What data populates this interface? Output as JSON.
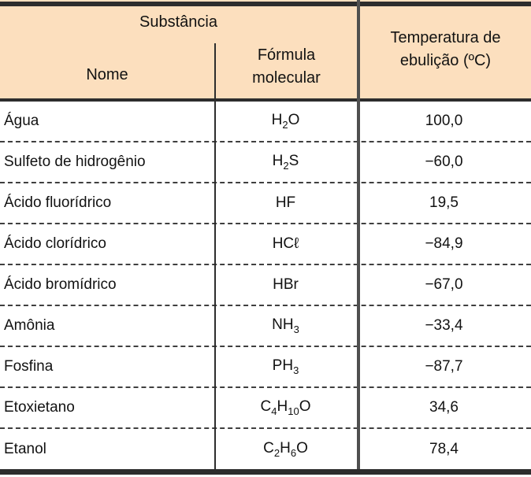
{
  "table": {
    "header": {
      "substance_group": "Substância",
      "col_name": "Nome",
      "col_formula_line1": "Fórmula",
      "col_formula_line2": "molecular",
      "col_temp_line1": "Temperatura de",
      "col_temp_line2": "ebulição (ºC)"
    },
    "rows": [
      {
        "name": "Água",
        "formula": "H~2~O",
        "temp": "100,0"
      },
      {
        "name": "Sulfeto de hidrogênio",
        "formula": "H~2~S",
        "temp": "−60,0"
      },
      {
        "name": "Ácido fluorídrico",
        "formula": "HF",
        "temp": "19,5"
      },
      {
        "name": "Ácido clorídrico",
        "formula": "HCℓ",
        "temp": "−84,9"
      },
      {
        "name": "Ácido bromídrico",
        "formula": "HBr",
        "temp": "−67,0"
      },
      {
        "name": "Amônia",
        "formula": "NH~3~",
        "temp": "−33,4"
      },
      {
        "name": "Fosfina",
        "formula": "PH~3~",
        "temp": "−87,7"
      },
      {
        "name": "Etoxietano",
        "formula": "C~4~H~10~O",
        "temp": "34,6"
      },
      {
        "name": "Etanol",
        "formula": "C~2~H~6~O",
        "temp": "78,4"
      }
    ]
  },
  "chart_data": {
    "type": "table",
    "title": "Substância / Temperatura de ebulição (ºC)",
    "columns": [
      "Nome",
      "Fórmula molecular",
      "Temperatura de ebulição (ºC)"
    ],
    "rows": [
      [
        "Água",
        "H2O",
        "100,0"
      ],
      [
        "Sulfeto de hidrogênio",
        "H2S",
        "−60,0"
      ],
      [
        "Ácido fluorídrico",
        "HF",
        "19,5"
      ],
      [
        "Ácido clorídrico",
        "HCℓ",
        "−84,9"
      ],
      [
        "Ácido bromídrico",
        "HBr",
        "−67,0"
      ],
      [
        "Amônia",
        "NH3",
        "−33,4"
      ],
      [
        "Fosfina",
        "PH3",
        "−87,7"
      ],
      [
        "Etoxietano",
        "C4H10O",
        "34,6"
      ],
      [
        "Etanol",
        "C2H6O",
        "78,4"
      ]
    ]
  },
  "colors": {
    "header_bg": "#fcdfbe",
    "border_dark": "#2d2d2d",
    "divider_gray": "#4f4f4f",
    "row_separator": "#3f3f3f",
    "text": "#121212",
    "body_bg": "#ffffff"
  }
}
